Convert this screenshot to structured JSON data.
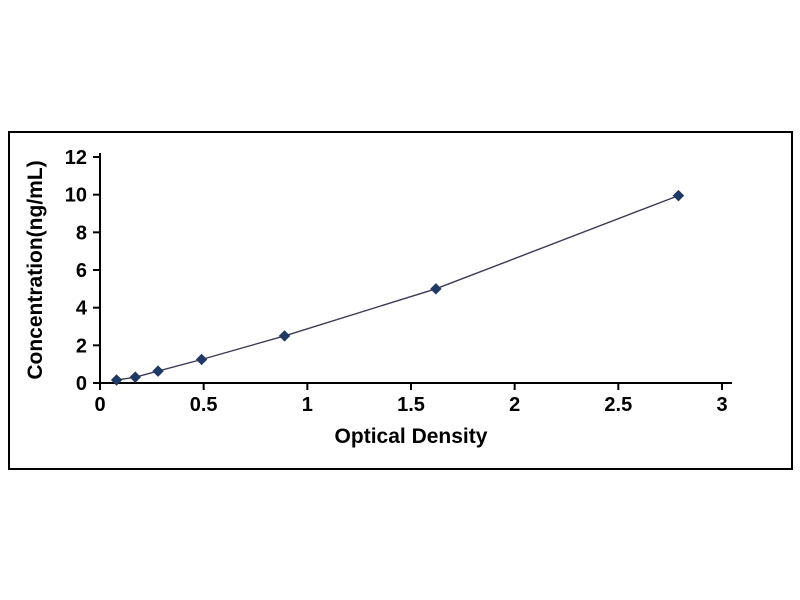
{
  "chart_data": {
    "type": "scatter",
    "title": "",
    "xlabel": "Optical Density",
    "ylabel": "Concentration(ng/mL)",
    "xlim": [
      0,
      3
    ],
    "ylim": [
      0,
      12
    ],
    "xticks": [
      0,
      0.5,
      1,
      1.5,
      2,
      2.5,
      3
    ],
    "yticks": [
      0,
      2,
      4,
      6,
      8,
      10,
      12
    ],
    "grid": false,
    "legend": "none",
    "marker": "diamond",
    "marker_color": "#1f3864",
    "line_color": "#3a3a55",
    "axis_color": "#000000",
    "points": [
      {
        "x": 0.08,
        "y": 0.16
      },
      {
        "x": 0.17,
        "y": 0.31
      },
      {
        "x": 0.28,
        "y": 0.63
      },
      {
        "x": 0.49,
        "y": 1.25
      },
      {
        "x": 0.89,
        "y": 2.5
      },
      {
        "x": 1.62,
        "y": 5.0
      },
      {
        "x": 2.79,
        "y": 9.95
      }
    ]
  }
}
